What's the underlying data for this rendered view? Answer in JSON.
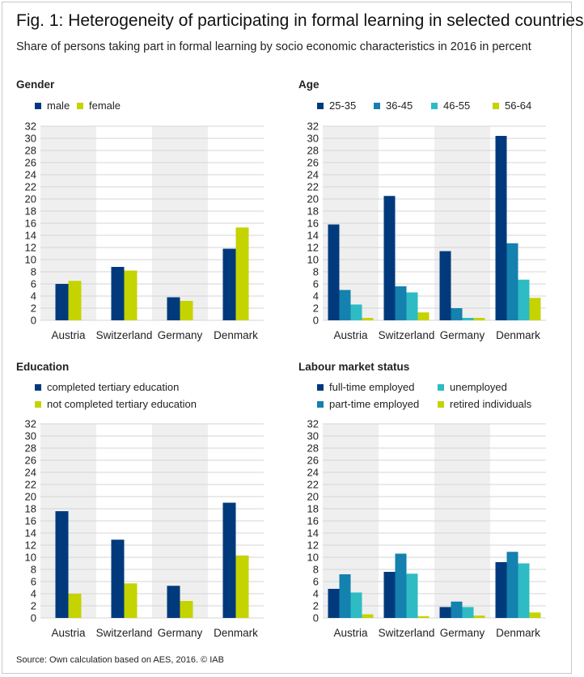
{
  "figure": {
    "title": "Fig. 1: Heterogeneity of participating in formal learning in selected countries",
    "subtitle": "Share of persons taking part in formal learning by socio economic characteristics in 2016 in percent",
    "source": "Source: Own calculation based on AES, 2016. © IAB"
  },
  "chart_data": [
    {
      "type": "bar",
      "title": "Gender",
      "categories": [
        "Austria",
        "Switzerland",
        "Germany",
        "Denmark"
      ],
      "ylim": [
        0,
        32
      ],
      "yticks": [
        0,
        2,
        4,
        6,
        8,
        10,
        12,
        14,
        16,
        18,
        20,
        22,
        24,
        26,
        28,
        30,
        32
      ],
      "grid": true,
      "legend_position": "top",
      "series": [
        {
          "name": "male",
          "color": "#003A7D",
          "values": [
            6.0,
            8.8,
            3.8,
            11.8
          ]
        },
        {
          "name": "female",
          "color": "#C5D300",
          "values": [
            6.5,
            8.2,
            3.2,
            15.3
          ]
        }
      ]
    },
    {
      "type": "bar",
      "title": "Age",
      "categories": [
        "Austria",
        "Switzerland",
        "Germany",
        "Denmark"
      ],
      "ylim": [
        0,
        32
      ],
      "yticks": [
        0,
        2,
        4,
        6,
        8,
        10,
        12,
        14,
        16,
        18,
        20,
        22,
        24,
        26,
        28,
        30,
        32
      ],
      "grid": true,
      "legend_position": "top",
      "series": [
        {
          "name": "25-35",
          "color": "#003A7D",
          "values": [
            15.8,
            20.5,
            11.4,
            30.4
          ]
        },
        {
          "name": "36-45",
          "color": "#1481AE",
          "values": [
            5.0,
            5.6,
            2.0,
            12.7
          ]
        },
        {
          "name": "46-55",
          "color": "#2EBBC4",
          "values": [
            2.6,
            4.6,
            0.4,
            6.7
          ]
        },
        {
          "name": "56-64",
          "color": "#C5D300",
          "values": [
            0.4,
            1.3,
            0.4,
            3.7
          ]
        }
      ]
    },
    {
      "type": "bar",
      "title": "Education",
      "categories": [
        "Austria",
        "Switzerland",
        "Germany",
        "Denmark"
      ],
      "ylim": [
        0,
        32
      ],
      "yticks": [
        0,
        2,
        4,
        6,
        8,
        10,
        12,
        14,
        16,
        18,
        20,
        22,
        24,
        26,
        28,
        30,
        32
      ],
      "grid": true,
      "legend_position": "top",
      "series": [
        {
          "name": "completed tertiary education",
          "color": "#003A7D",
          "values": [
            17.6,
            12.9,
            5.3,
            19.0
          ]
        },
        {
          "name": "not completed tertiary education",
          "color": "#C5D300",
          "values": [
            4.0,
            5.7,
            2.8,
            10.3
          ]
        }
      ]
    },
    {
      "type": "bar",
      "title": "Labour market status",
      "categories": [
        "Austria",
        "Switzerland",
        "Germany",
        "Denmark"
      ],
      "ylim": [
        0,
        32
      ],
      "yticks": [
        0,
        2,
        4,
        6,
        8,
        10,
        12,
        14,
        16,
        18,
        20,
        22,
        24,
        26,
        28,
        30,
        32
      ],
      "grid": true,
      "legend_position": "top",
      "series": [
        {
          "name": "full-time employed",
          "color": "#003A7D",
          "values": [
            4.8,
            7.6,
            1.8,
            9.2
          ]
        },
        {
          "name": "part-time employed",
          "color": "#1481AE",
          "values": [
            7.2,
            10.6,
            2.7,
            10.9
          ]
        },
        {
          "name": "unemployed",
          "color": "#2EBBC4",
          "values": [
            4.2,
            7.3,
            1.8,
            9.0
          ]
        },
        {
          "name": "retired individuals",
          "color": "#C5D300",
          "values": [
            0.6,
            0.3,
            0.4,
            0.9
          ]
        }
      ]
    }
  ]
}
